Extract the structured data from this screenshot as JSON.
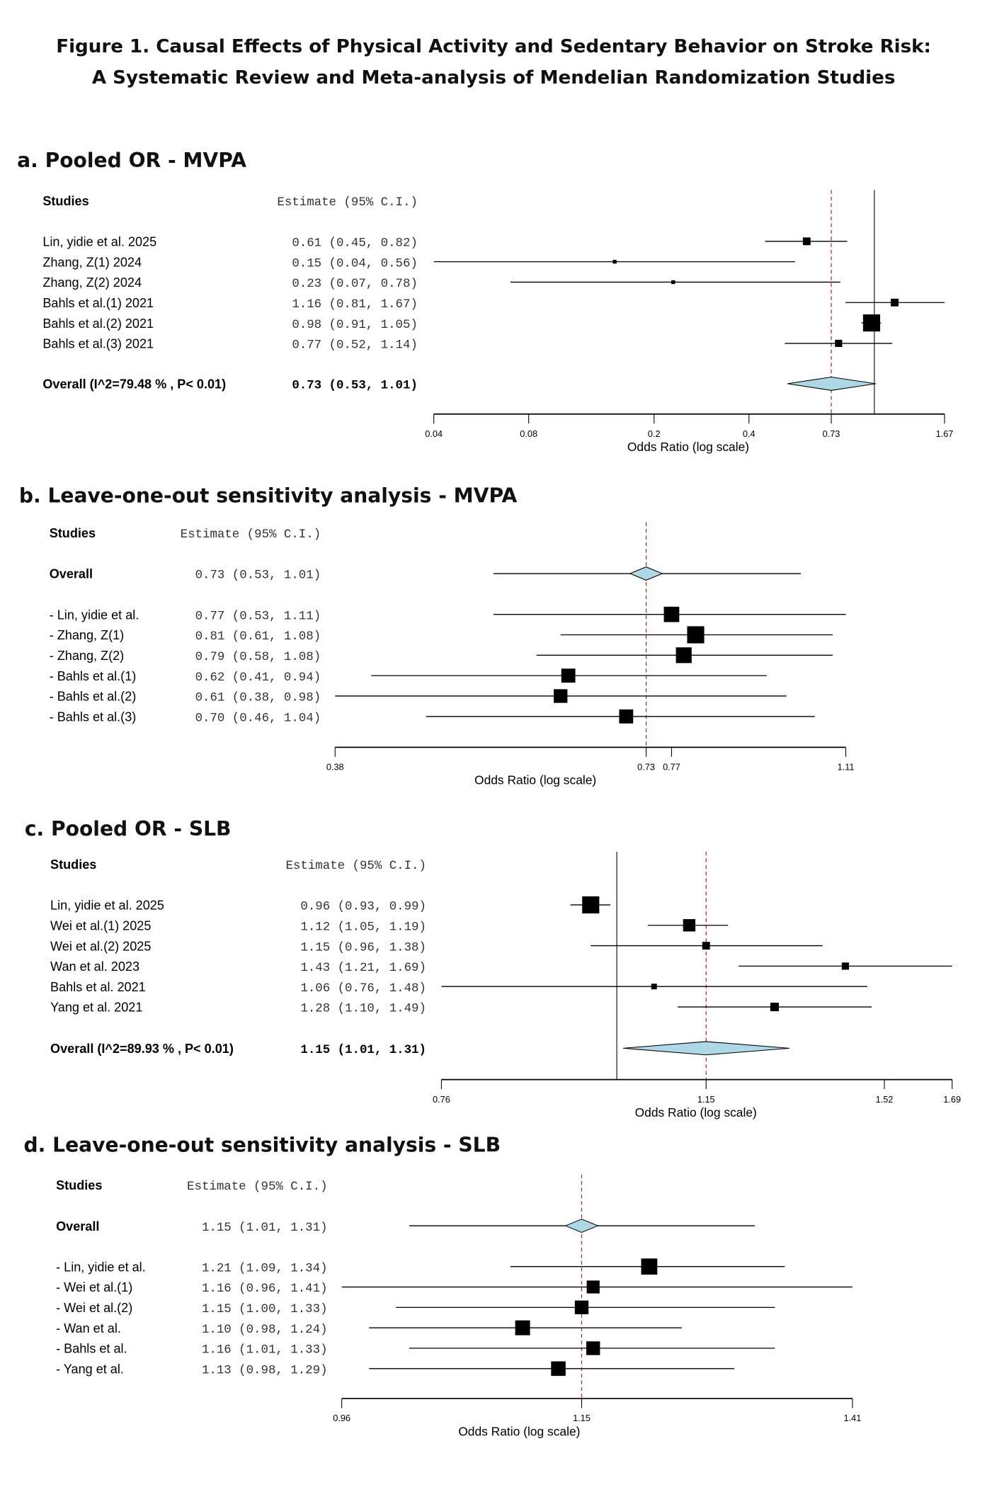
{
  "title": {
    "line1": "Figure 1. Causal Effects of Physical Activity and Sedentary Behavior on Stroke Risk:",
    "line2": "A Systematic Review and Meta-analysis of Mendelian Randomization Studies"
  },
  "colors": {
    "diamond": "#add8e6",
    "reference_line": "#b22222",
    "marks": "#000000"
  },
  "chart_data": [
    {
      "type": "forest",
      "panel_title": "a. Pooled OR - MVPA",
      "studies_header": "Studies",
      "estimate_header": "Estimate (95% C.I.)",
      "xlabel": "Odds Ratio (log scale)",
      "xscale": "log",
      "xlim": [
        0.04,
        1.67
      ],
      "ticks": [
        "0.04",
        "0.08",
        "0.2",
        "0.4",
        "0.73",
        "1.67"
      ],
      "null_line": 1,
      "reference_line": 0.73,
      "rows": [
        {
          "label": "Lin, yidie et al. 2025",
          "or": 0.61,
          "lo": 0.45,
          "hi": 0.82,
          "estimate": "0.61 (0.45, 0.82)",
          "weight": 0.45
        },
        {
          "label": "Zhang, Z(1) 2024",
          "or": 0.15,
          "lo": 0.04,
          "hi": 0.56,
          "estimate": "0.15 (0.04, 0.56)",
          "weight": 0.2
        },
        {
          "label": "Zhang, Z(2) 2024",
          "or": 0.23,
          "lo": 0.07,
          "hi": 0.78,
          "estimate": "0.23 (0.07, 0.78)",
          "weight": 0.2
        },
        {
          "label": "Bahls et al.(1) 2021",
          "or": 1.16,
          "lo": 0.81,
          "hi": 1.67,
          "estimate": "1.16 (0.81, 1.67)",
          "weight": 0.45
        },
        {
          "label": "Bahls et al.(2) 2021",
          "or": 0.98,
          "lo": 0.91,
          "hi": 1.05,
          "estimate": "0.98 (0.91, 1.05)",
          "weight": 1.0
        },
        {
          "label": "Bahls et al.(3) 2021",
          "or": 0.77,
          "lo": 0.52,
          "hi": 1.14,
          "estimate": "0.77 (0.52, 1.14)",
          "weight": 0.42
        }
      ],
      "overall": {
        "label": "Overall (I^2=79.48 % , P< 0.01)",
        "or": 0.73,
        "lo": 0.53,
        "hi": 1.01,
        "estimate": "0.73 (0.53, 1.01)",
        "whisker": false,
        "position": "bottom"
      }
    },
    {
      "type": "forest",
      "panel_title": "b. Leave-one-out sensitivity analysis  - MVPA",
      "studies_header": "Studies",
      "estimate_header": "Estimate (95% C.I.)",
      "xlabel": "Odds Ratio (log scale)",
      "xscale": "log",
      "xlim": [
        0.38,
        1.11
      ],
      "ticks": [
        "0.38",
        "0.73",
        "0.77",
        "1.11"
      ],
      "null_line": null,
      "reference_line": 0.73,
      "rows": [
        {
          "label": "- Lin, yidie et al.",
          "or": 0.77,
          "lo": 0.53,
          "hi": 1.11,
          "estimate": "0.77 (0.53, 1.11)",
          "weight": 0.9
        },
        {
          "label": "- Zhang, Z(1)",
          "or": 0.81,
          "lo": 0.61,
          "hi": 1.08,
          "estimate": "0.81 (0.61, 1.08)",
          "weight": 1.0
        },
        {
          "label": "- Zhang, Z(2)",
          "or": 0.79,
          "lo": 0.58,
          "hi": 1.08,
          "estimate": "0.79 (0.58, 1.08)",
          "weight": 0.92
        },
        {
          "label": "- Bahls et al.(1)",
          "or": 0.62,
          "lo": 0.41,
          "hi": 0.94,
          "estimate": "0.62 (0.41, 0.94)",
          "weight": 0.82
        },
        {
          "label": "- Bahls et al.(2)",
          "or": 0.61,
          "lo": 0.38,
          "hi": 0.98,
          "estimate": "0.61 (0.38, 0.98)",
          "weight": 0.8
        },
        {
          "label": "- Bahls et al.(3)",
          "or": 0.7,
          "lo": 0.46,
          "hi": 1.04,
          "estimate": "0.70 (0.46, 1.04)",
          "weight": 0.82
        }
      ],
      "overall": {
        "label": "Overall",
        "or": 0.73,
        "lo": 0.53,
        "hi": 1.01,
        "estimate": "0.73 (0.53, 1.01)",
        "whisker": true,
        "position": "top"
      }
    },
    {
      "type": "forest",
      "panel_title": "c. Pooled OR - SLB",
      "studies_header": "Studies",
      "estimate_header": "Estimate (95% C.I.)",
      "xlabel": "Odds Ratio (log scale)",
      "xscale": "log",
      "xlim": [
        0.76,
        1.69
      ],
      "ticks": [
        "0.76",
        "1.15",
        "1.52",
        "1.69"
      ],
      "null_line": 1,
      "reference_line": 1.15,
      "rows": [
        {
          "label": "Lin, yidie et al. 2025",
          "or": 0.96,
          "lo": 0.93,
          "hi": 0.99,
          "estimate": "0.96 (0.93, 0.99)",
          "weight": 1.0
        },
        {
          "label": "Wei et al.(1) 2025",
          "or": 1.12,
          "lo": 1.05,
          "hi": 1.19,
          "estimate": "1.12 (1.05, 1.19)",
          "weight": 0.72
        },
        {
          "label": "Wei et al.(2) 2025",
          "or": 1.15,
          "lo": 0.96,
          "hi": 1.38,
          "estimate": "1.15 (0.96, 1.38)",
          "weight": 0.45
        },
        {
          "label": "Wan et al. 2023",
          "or": 1.43,
          "lo": 1.21,
          "hi": 1.69,
          "estimate": "1.43 (1.21, 1.69)",
          "weight": 0.42
        },
        {
          "label": "Bahls et al. 2021",
          "or": 1.06,
          "lo": 0.76,
          "hi": 1.48,
          "estimate": "1.06 (0.76, 1.48)",
          "weight": 0.33
        },
        {
          "label": "Yang et al. 2021",
          "or": 1.28,
          "lo": 1.1,
          "hi": 1.49,
          "estimate": "1.28 (1.10, 1.49)",
          "weight": 0.5
        }
      ],
      "overall": {
        "label": "Overall (I^2=89.93 % , P< 0.01)",
        "or": 1.15,
        "lo": 1.01,
        "hi": 1.31,
        "estimate": "1.15 (1.01, 1.31)",
        "whisker": false,
        "position": "bottom"
      }
    },
    {
      "type": "forest",
      "panel_title": "d. Leave-one-out sensitivity analysis - SLB",
      "studies_header": "Studies",
      "estimate_header": "Estimate (95% C.I.)",
      "xlabel": "Odds Ratio (log scale)",
      "xscale": "log",
      "xlim": [
        0.96,
        1.41
      ],
      "ticks": [
        "0.96",
        "1.15",
        "1.41"
      ],
      "null_line": null,
      "reference_line": 1.15,
      "rows": [
        {
          "label": "- Lin, yidie et al.",
          "or": 1.21,
          "lo": 1.09,
          "hi": 1.34,
          "estimate": "1.21 (1.09, 1.34)",
          "weight": 1.0
        },
        {
          "label": "- Wei et al.(1)",
          "or": 1.16,
          "lo": 0.96,
          "hi": 1.41,
          "estimate": "1.16 (0.96, 1.41)",
          "weight": 0.8
        },
        {
          "label": "- Wei et al.(2)",
          "or": 1.15,
          "lo": 1.0,
          "hi": 1.33,
          "estimate": "1.15 (1.00, 1.33)",
          "weight": 0.85
        },
        {
          "label": "- Wan et al.",
          "or": 1.1,
          "lo": 0.98,
          "hi": 1.24,
          "estimate": "1.10 (0.98, 1.24)",
          "weight": 0.92
        },
        {
          "label": "- Bahls et al.",
          "or": 1.16,
          "lo": 1.01,
          "hi": 1.33,
          "estimate": "1.16 (1.01, 1.33)",
          "weight": 0.85
        },
        {
          "label": "- Yang et al.",
          "or": 1.13,
          "lo": 0.98,
          "hi": 1.29,
          "estimate": "1.13 (0.98, 1.29)",
          "weight": 0.9
        }
      ],
      "overall": {
        "label": "Overall",
        "or": 1.15,
        "lo": 1.01,
        "hi": 1.31,
        "estimate": "1.15 (1.01, 1.31)",
        "whisker": true,
        "position": "top"
      }
    }
  ]
}
